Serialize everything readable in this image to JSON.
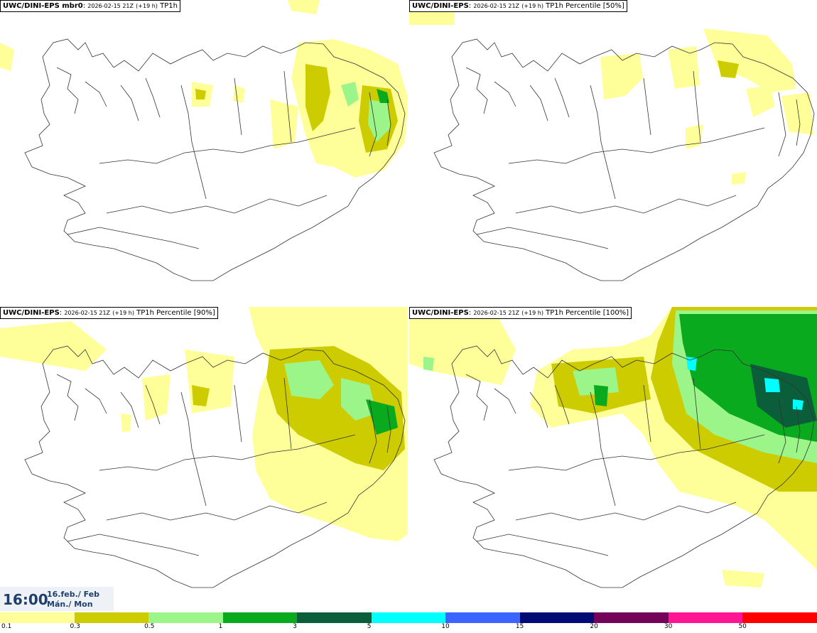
{
  "panels": [
    {
      "model": "UWC/DINI-EPS mbr0",
      "run": "2026-02-15 21Z",
      "lead": "(+19 h)",
      "field": "TP1h"
    },
    {
      "model": "UWC/DINI-EPS",
      "run": "2026-02-15 21Z",
      "lead": "(+19 h)",
      "field": "TP1h Percentile [50%]"
    },
    {
      "model": "UWC/DINI-EPS",
      "run": "2026-02-15 21Z",
      "lead": "(+19 h)",
      "field": "TP1h Percentile [90%]"
    },
    {
      "model": "UWC/DINI-EPS",
      "run": "2026-02-15 21Z",
      "lead": "(+19 h)",
      "field": "TP1h Percentile [100%]"
    }
  ],
  "valid_time": {
    "time": "16:00",
    "date_line1": "16.feb./ Feb",
    "date_line2": "Mán./ Mon"
  },
  "colorbar": {
    "colors": [
      "#ffff9a",
      "#cccc00",
      "#9cf589",
      "#0aaa1e",
      "#0b5e3a",
      "#00ffff",
      "#3c64ff",
      "#000c73",
      "#73045a",
      "#ff1493",
      "#ff0000"
    ],
    "labels": [
      "0.1",
      "0.3",
      "0.5",
      "1",
      "3",
      "5",
      "10",
      "15",
      "20",
      "30",
      "50"
    ]
  }
}
